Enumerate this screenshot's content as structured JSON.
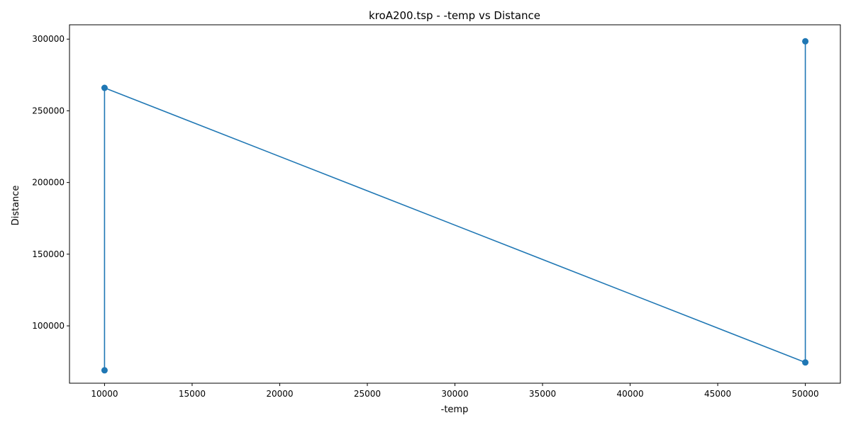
{
  "chart_data": {
    "type": "line",
    "title": "kroA200.tsp - -temp vs Distance",
    "xlabel": "-temp",
    "ylabel": "Distance",
    "xlim": [
      8000,
      52000
    ],
    "ylim": [
      60000,
      310000
    ],
    "x_ticks": [
      10000,
      15000,
      20000,
      25000,
      30000,
      35000,
      40000,
      45000,
      50000
    ],
    "y_ticks": [
      100000,
      150000,
      200000,
      250000,
      300000
    ],
    "grid": false,
    "legend": "none",
    "series": [
      {
        "color": "#1f77b4",
        "marker": "circle",
        "x": [
          10000,
          10000,
          50000,
          50000
        ],
        "y": [
          69000,
          266000,
          74500,
          298500
        ]
      }
    ]
  }
}
